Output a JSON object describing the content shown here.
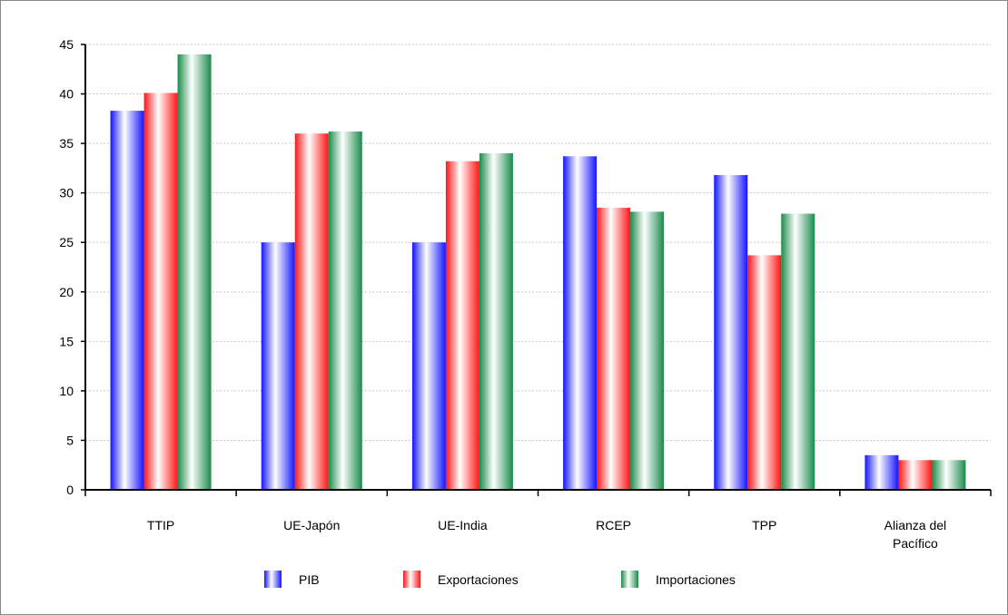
{
  "chart_data": {
    "type": "bar",
    "title": "",
    "xlabel": "",
    "ylabel": "",
    "ylim": [
      0,
      45
    ],
    "yticks": [
      0,
      5,
      10,
      15,
      20,
      25,
      30,
      35,
      40,
      45
    ],
    "grid": true,
    "legend_position": "bottom",
    "categories": [
      [
        "TTIP"
      ],
      [
        "UE-Japón"
      ],
      [
        "UE-India"
      ],
      [
        "RCEP"
      ],
      [
        "TPP"
      ],
      [
        "Alianza del",
        "Pacífico"
      ]
    ],
    "series": [
      {
        "name": "PIB",
        "values": [
          38.3,
          25.0,
          25.0,
          33.7,
          31.8,
          3.5
        ],
        "color": "#1414ff"
      },
      {
        "name": "Exportaciones",
        "values": [
          40.1,
          36.0,
          33.2,
          28.5,
          23.7,
          3.0
        ],
        "color": "#ff1414"
      },
      {
        "name": "Importaciones",
        "values": [
          44.0,
          36.2,
          34.0,
          28.1,
          27.9,
          3.0
        ],
        "color": "#1a8a4a"
      }
    ]
  }
}
